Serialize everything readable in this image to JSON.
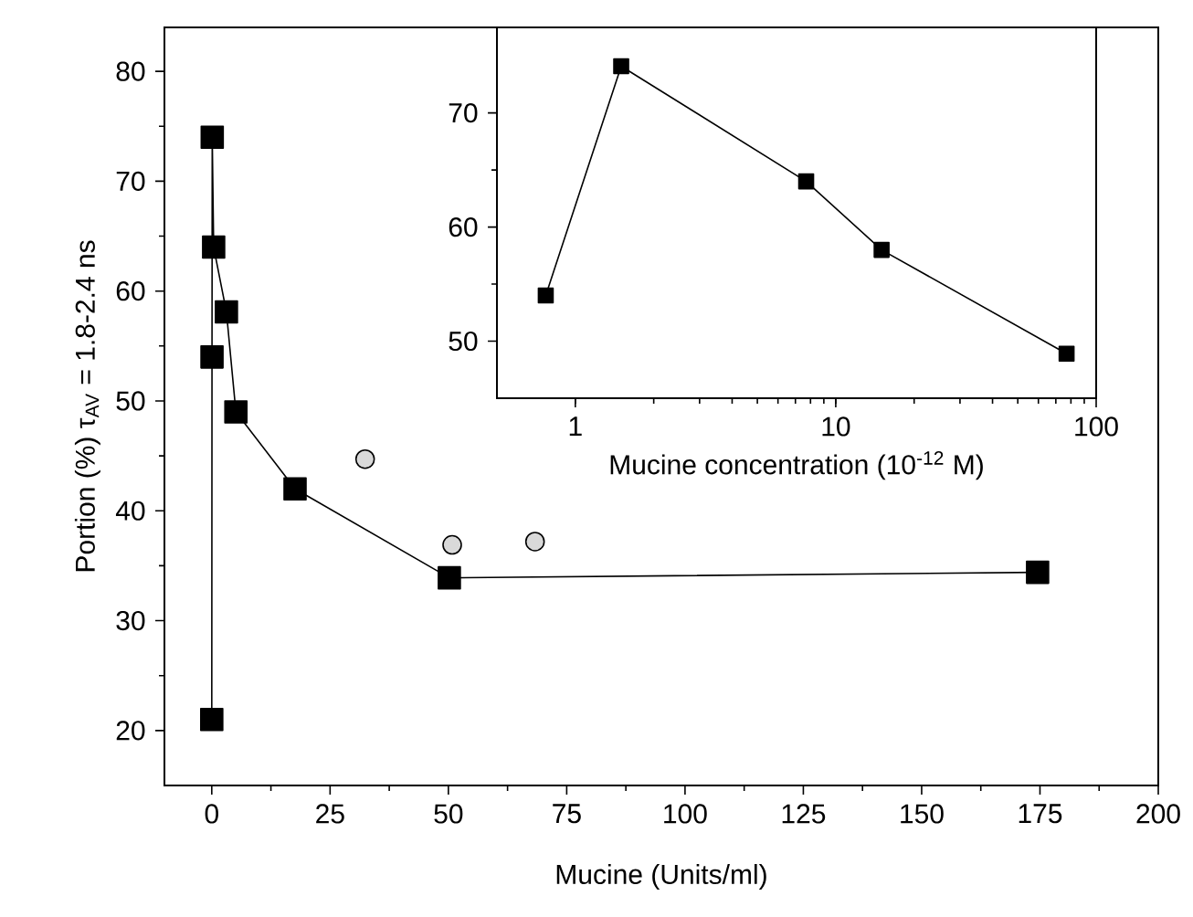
{
  "chart_data": [
    {
      "type": "line",
      "xlabel": "Mucine (Units/ml)",
      "ylabel": "Portion (%) τ$_{AV}$ = 1.8-2.4 ns",
      "xlim": [
        -10,
        200
      ],
      "ylim": [
        15,
        84
      ],
      "xticks": [
        0,
        25,
        50,
        75,
        100,
        125,
        150,
        175,
        200
      ],
      "yticks": [
        20,
        30,
        40,
        50,
        60,
        70,
        80
      ],
      "series": [
        {
          "type": "line",
          "marker": "square",
          "color": "#000000",
          "x": [
            0,
            0.05,
            0.1,
            0.4,
            3.1,
            5.1,
            17.6,
            50.2,
            174.5
          ],
          "values": [
            21,
            54,
            74,
            64,
            58.1,
            49,
            42,
            33.9,
            34.4
          ]
        },
        {
          "type": "scatter",
          "marker": "circle",
          "color": "#d9d9d9",
          "x": [
            32.4,
            50.8,
            68.3
          ],
          "values": [
            44.7,
            36.9,
            37.2
          ]
        }
      ]
    },
    {
      "type": "line",
      "xlabel": "Mucine concentration (10$^{-12}$ M)",
      "log": "x",
      "xlim": [
        0.5,
        100
      ],
      "ylim": [
        45,
        77.5
      ],
      "xticks": [
        1,
        10,
        100
      ],
      "yticks": [
        50,
        60,
        70
      ],
      "series": [
        {
          "type": "line",
          "marker": "square",
          "color": "#000000",
          "x": [
            0.77,
            1.5,
            7.7,
            15,
            77
          ],
          "values": [
            54,
            74.1,
            64,
            58,
            48.9
          ]
        }
      ]
    }
  ]
}
